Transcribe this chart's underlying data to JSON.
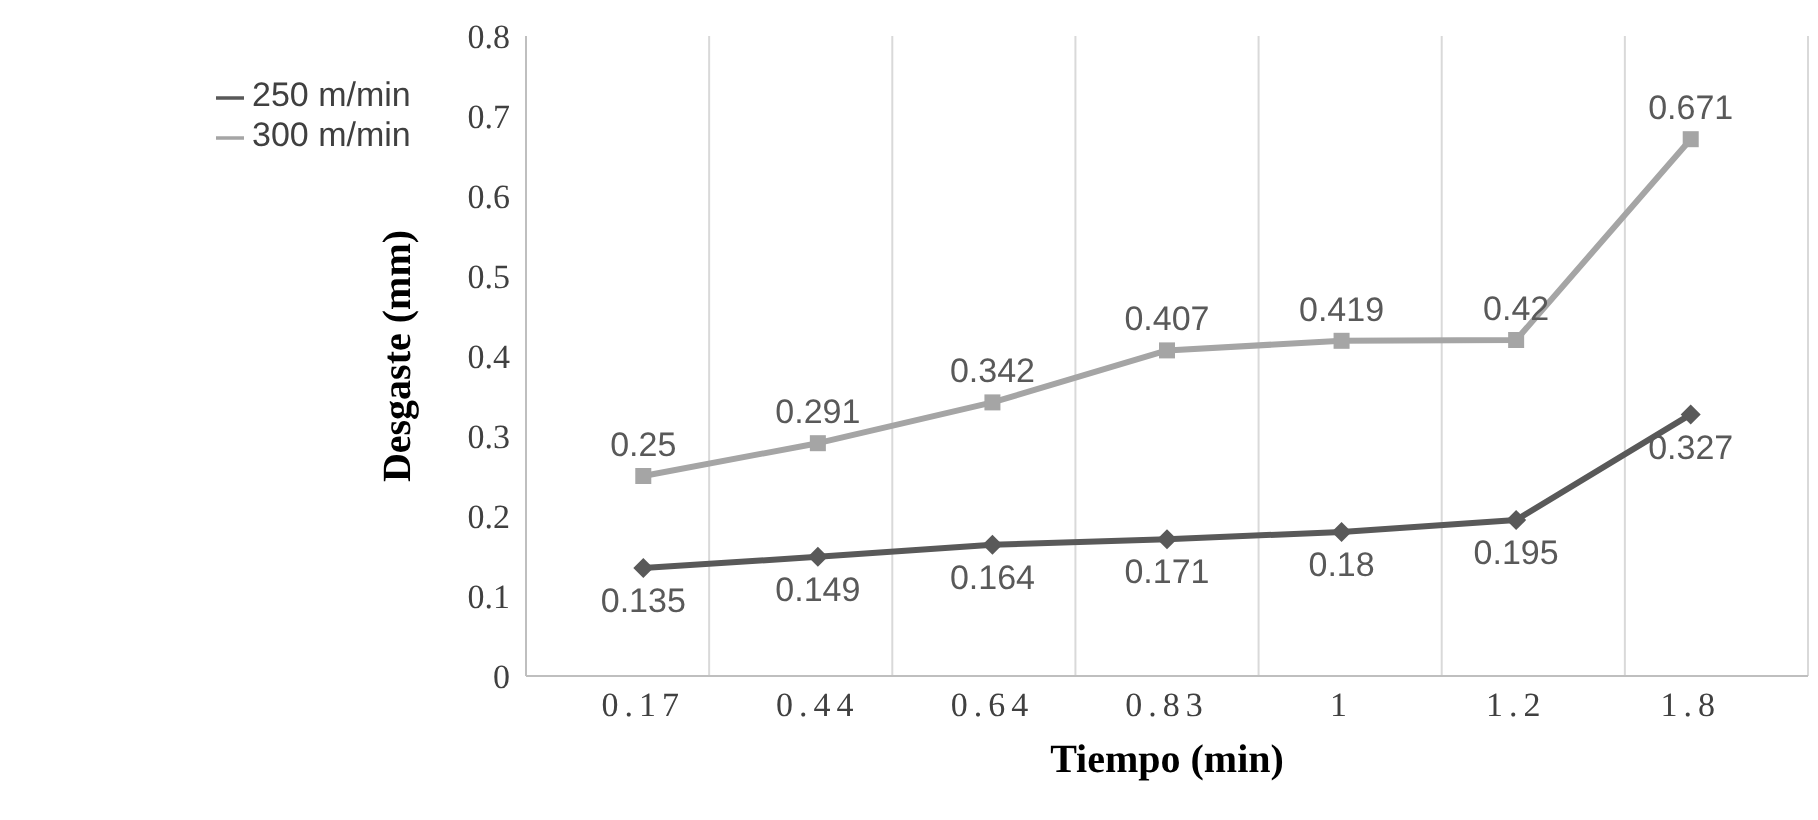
{
  "chart_data": {
    "type": "line",
    "xlabel": "Tiempo (min)",
    "ylabel": "Desgaste (mm)",
    "categories": [
      "0.17",
      "0.44",
      "0.64",
      "0.83",
      "1",
      "1.2",
      "1.8"
    ],
    "series": [
      {
        "name": "250 m/min",
        "color": "#595959",
        "marker": "diamond",
        "values": [
          0.135,
          0.149,
          0.164,
          0.171,
          0.18,
          0.195,
          0.327
        ]
      },
      {
        "name": "300 m/min",
        "color": "#a5a5a5",
        "marker": "square",
        "values": [
          0.25,
          0.291,
          0.342,
          0.407,
          0.419,
          0.42,
          0.671
        ]
      }
    ],
    "ylim": [
      0,
      0.8
    ],
    "yticks": [
      0,
      0.1,
      0.2,
      0.3,
      0.4,
      0.5,
      0.6,
      0.7,
      0.8
    ],
    "grid": "x",
    "legend": "top left",
    "data_labels": true
  }
}
